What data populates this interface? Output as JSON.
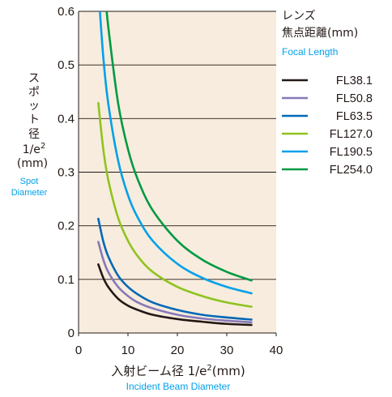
{
  "chart_data": {
    "type": "line",
    "xlim": [
      0,
      40
    ],
    "ylim": [
      0,
      0.6
    ],
    "x_ticks": [
      "0",
      "10",
      "20",
      "30",
      "40"
    ],
    "y_ticks": [
      "0",
      "0.1",
      "0.2",
      "0.3",
      "0.4",
      "0.5",
      "0.6"
    ],
    "grid": "horizontal",
    "legend_position": "right",
    "ylabel": {
      "jp_chars": [
        "ス",
        "ポ",
        "ッ",
        "ト",
        "径"
      ],
      "line1": "1/e",
      "line1_sup": "2",
      "unit": "(mm)",
      "en1": "Spot",
      "en2": "Diameter"
    },
    "xlabel": {
      "jp": "入射ビーム径 1/e",
      "sup": "2",
      "unit": "(mm)",
      "en": "Incident Beam Diameter"
    },
    "legend_title": {
      "line1": "レンズ",
      "line2": "焦点距離(mm)",
      "line3": "Focal Length"
    },
    "series": [
      {
        "name": "FL38.1",
        "color": "#231815",
        "x": [
          4,
          5,
          6,
          8,
          10,
          12,
          15,
          20,
          25,
          30,
          35
        ],
        "values": [
          0.128,
          0.103,
          0.086,
          0.064,
          0.051,
          0.043,
          0.034,
          0.026,
          0.021,
          0.017,
          0.015
        ]
      },
      {
        "name": "FL50.8",
        "color": "#8778b8",
        "x": [
          4,
          5,
          6,
          8,
          10,
          12,
          15,
          20,
          25,
          30,
          35
        ],
        "values": [
          0.17,
          0.137,
          0.114,
          0.086,
          0.069,
          0.057,
          0.046,
          0.034,
          0.027,
          0.023,
          0.02
        ]
      },
      {
        "name": "FL63.5",
        "color": "#0068b7",
        "x": [
          4,
          5,
          6,
          8,
          10,
          12,
          15,
          20,
          25,
          30,
          35
        ],
        "values": [
          0.213,
          0.171,
          0.143,
          0.107,
          0.086,
          0.072,
          0.057,
          0.043,
          0.034,
          0.029,
          0.025
        ]
      },
      {
        "name": "FL127.0",
        "color": "#8fc31f",
        "x": [
          4,
          5,
          6,
          8,
          10,
          12,
          15,
          20,
          25,
          30,
          35
        ],
        "values": [
          0.429,
          0.343,
          0.286,
          0.215,
          0.172,
          0.143,
          0.114,
          0.086,
          0.069,
          0.057,
          0.049
        ]
      },
      {
        "name": "FL190.5",
        "color": "#00a0e9",
        "x": [
          4,
          5,
          6,
          8,
          10,
          12,
          15,
          20,
          25,
          30,
          35
        ],
        "values": [
          0.643,
          0.515,
          0.429,
          0.322,
          0.257,
          0.215,
          0.172,
          0.129,
          0.103,
          0.086,
          0.074
        ]
      },
      {
        "name": "FL254.0",
        "color": "#009944",
        "x": [
          5.5,
          6,
          8,
          10,
          12,
          15,
          20,
          25,
          30,
          35
        ],
        "values": [
          0.624,
          0.572,
          0.429,
          0.343,
          0.286,
          0.229,
          0.172,
          0.137,
          0.114,
          0.098
        ]
      }
    ]
  }
}
